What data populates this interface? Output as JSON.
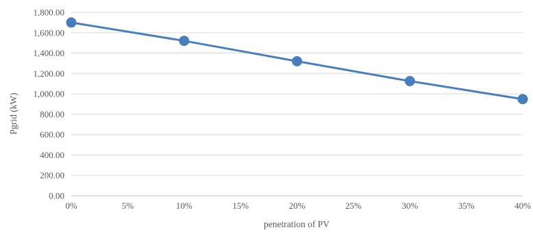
{
  "chart_data": {
    "type": "line",
    "title": "",
    "xlabel": "penetration of PV",
    "ylabel": "Pgrid (kW)",
    "x": [
      0,
      10,
      20,
      30,
      40
    ],
    "x_tick_labels": [
      "0%",
      "5%",
      "10%",
      "15%",
      "20%",
      "25%",
      "30%",
      "35%",
      "40%"
    ],
    "x_tick_values": [
      0,
      5,
      10,
      15,
      20,
      25,
      30,
      35,
      40
    ],
    "xlim": [
      0,
      40
    ],
    "y_tick_labels": [
      "0.00",
      "200.00",
      "400.00",
      "600.00",
      "800.00",
      "1,000.00",
      "1,200.00",
      "1,400.00",
      "1,600.00",
      "1,800.00"
    ],
    "y_tick_values": [
      0,
      200,
      400,
      600,
      800,
      1000,
      1200,
      1400,
      1600,
      1800
    ],
    "ylim": [
      0,
      1800
    ],
    "grid": true,
    "legend": "none",
    "series": [
      {
        "values": [
          1700,
          1520,
          1320,
          1125,
          948
        ],
        "color": "#4a7ebb"
      }
    ]
  }
}
